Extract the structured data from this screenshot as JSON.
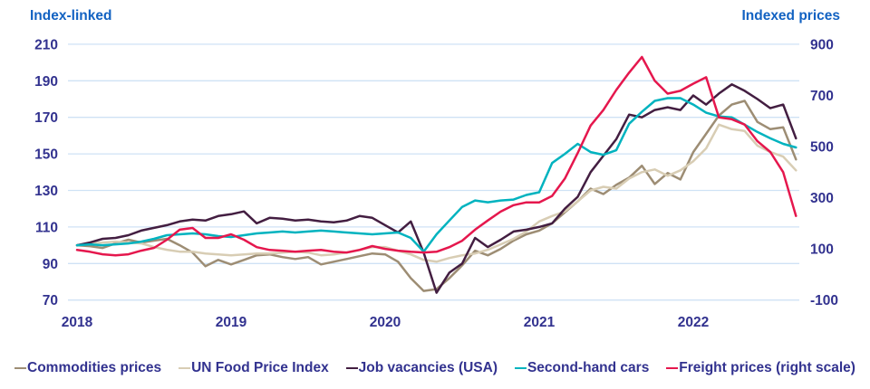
{
  "header": {
    "left_axis_title": "Index-linked",
    "right_axis_title": "Indexed prices"
  },
  "colors": {
    "axis_title_blue": "#1262c2",
    "tick_text_indigo": "#32328f",
    "gridline": "#cfe2f5",
    "background": "#ffffff"
  },
  "chart_data": {
    "type": "line",
    "title": "",
    "x_unit": "month",
    "x_start": "2018-01",
    "x_end": "2022-09",
    "x_tick_labels": [
      "2018",
      "2019",
      "2020",
      "2021",
      "2022"
    ],
    "left_axis": {
      "label": "Index-linked",
      "ticks": [
        70,
        90,
        110,
        130,
        150,
        170,
        190,
        210
      ],
      "range": [
        70,
        210
      ]
    },
    "right_axis": {
      "label": "Indexed prices",
      "ticks": [
        -100,
        100,
        300,
        500,
        700,
        900
      ],
      "range": [
        -100,
        900
      ]
    },
    "grid": "horizontal-only",
    "legend_position": "bottom",
    "series": [
      {
        "name": "Commodities prices",
        "axis": "left",
        "color": "#9d8d74",
        "values": [
          100,
          99.5,
          98.5,
          101,
          103,
          101.5,
          102.5,
          103.5,
          100,
          96,
          88.5,
          92,
          89.5,
          92,
          94.5,
          95,
          93.5,
          92.5,
          93.5,
          89.5,
          91,
          92.5,
          94,
          95.5,
          95,
          91,
          82,
          75,
          76,
          82,
          89,
          97,
          94.5,
          98,
          102.5,
          106,
          108,
          112,
          118,
          124,
          131,
          128,
          133,
          137,
          143.5,
          133.5,
          139.5,
          136,
          151,
          161,
          171,
          177,
          179,
          167.5,
          163.5,
          164.5,
          147
        ]
      },
      {
        "name": "UN Food Price Index",
        "axis": "left",
        "color": "#d8cdb4",
        "values": [
          100,
          101,
          101.5,
          102,
          101.5,
          101,
          99,
          97.5,
          96.5,
          96.5,
          95.5,
          95,
          94.5,
          95,
          95.5,
          95.5,
          96,
          96.5,
          96,
          94.5,
          95,
          96,
          97.5,
          99,
          99,
          97,
          95,
          92,
          91,
          93,
          94.5,
          95.5,
          97.5,
          100.5,
          103.5,
          107.5,
          113,
          116,
          118.5,
          124,
          130,
          132,
          131,
          136.5,
          140,
          141.5,
          138,
          141,
          146,
          153,
          166,
          163.5,
          162.5,
          154.5,
          151,
          148.5,
          141
        ]
      },
      {
        "name": "Job vacancies (USA)",
        "axis": "left",
        "color": "#431e41",
        "values": [
          100,
          101.5,
          103.5,
          104,
          105.5,
          108,
          109.5,
          111,
          113,
          114,
          113.5,
          116,
          117,
          118.5,
          112,
          115,
          114.5,
          113.5,
          114,
          113,
          112.5,
          113.5,
          116,
          115,
          111,
          107,
          113,
          96,
          74,
          85,
          90,
          104,
          99,
          103,
          107.5,
          108.5,
          110,
          112,
          120,
          126.5,
          140,
          149,
          158,
          171.5,
          170,
          174,
          175.5,
          174,
          182,
          177,
          183,
          188,
          184.5,
          180,
          175,
          177,
          158.5
        ]
      },
      {
        "name": "Second-hand cars",
        "axis": "left",
        "color": "#00b3bf",
        "values": [
          100,
          100.5,
          100,
          100.5,
          101,
          102,
          103.5,
          105.5,
          106,
          106.5,
          106,
          105,
          104.5,
          105.5,
          106.5,
          107,
          107.5,
          107,
          107.5,
          108,
          107.5,
          107,
          106.5,
          106,
          106.5,
          107,
          104,
          96.5,
          106,
          113.5,
          121,
          124.5,
          123.5,
          124.5,
          125,
          127.5,
          129,
          145,
          150,
          155.5,
          151,
          149.5,
          152,
          166.5,
          173,
          179,
          180.5,
          180.5,
          177,
          172.5,
          170.5,
          170,
          166,
          162,
          158.5,
          155.5,
          153.5
        ]
      },
      {
        "name": "Freight prices (right scale)",
        "axis": "right",
        "color": "#e5174d",
        "values": [
          96,
          89,
          79,
          75,
          79,
          93,
          104,
          136,
          175,
          182,
          143,
          143,
          157,
          136,
          107,
          96,
          93,
          89,
          93,
          96,
          89,
          86,
          96,
          111,
          100,
          93,
          89,
          86,
          89,
          107,
          132,
          175,
          211,
          246,
          271,
          282,
          282,
          307,
          375,
          475,
          582,
          643,
          721,
          789,
          850,
          757,
          707,
          718,
          746,
          771,
          614,
          607,
          586,
          521,
          479,
          400,
          229
        ]
      }
    ]
  }
}
